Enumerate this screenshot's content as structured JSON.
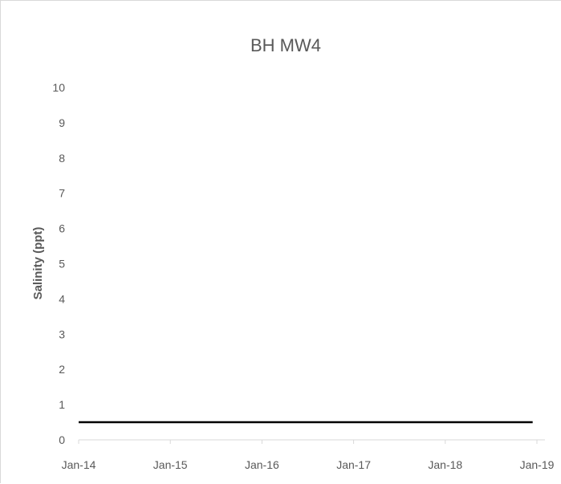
{
  "chart_data": {
    "type": "line",
    "title": "BH MW4",
    "xlabel": "",
    "ylabel": "Salinity (ppt)",
    "ylim": [
      0,
      10
    ],
    "yticks": [
      "0",
      "1",
      "2",
      "3",
      "4",
      "5",
      "6",
      "7",
      "8",
      "9",
      "10"
    ],
    "xlim": [
      "2014-01-01",
      "2019-01-01"
    ],
    "xticks": [
      "Jan-14",
      "Jan-15",
      "Jan-16",
      "Jan-17",
      "Jan-18",
      "Jan-19"
    ],
    "grid": false,
    "legend": "none",
    "series": [
      {
        "color": "#000000",
        "x": [
          "2014-01-01",
          "2018-12-15"
        ],
        "y": [
          0.5,
          0.5
        ]
      }
    ]
  },
  "colors": {
    "axis": "#d9d9d9",
    "text": "#595959",
    "line": "#000000"
  }
}
